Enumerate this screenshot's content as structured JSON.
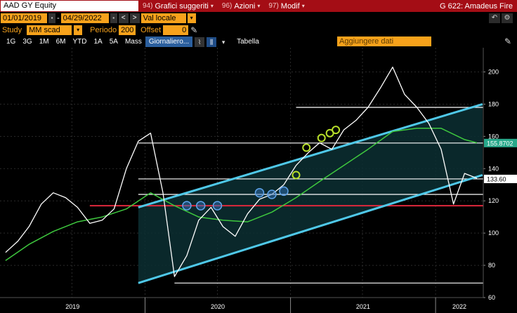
{
  "toolbar1": {
    "ticker": "AAD GY Equity",
    "menus": [
      {
        "num": "94)",
        "label": "Grafici suggeriti"
      },
      {
        "num": "96)",
        "label": "Azioni"
      },
      {
        "num": "97)",
        "label": "Modif"
      }
    ],
    "right_title": "G 622: Amadeus Fire"
  },
  "toolbar2": {
    "start_date": "01/01/2019",
    "end_date": "04/29/2022",
    "currency": "Val locale",
    "prev": "<",
    "next": ">",
    "undo_icon": "undo-icon",
    "settings_icon": "gear-icon"
  },
  "toolbar3": {
    "study_label": "Study",
    "study_value": "MM scad",
    "period_label": "Periodo",
    "period_value": "200",
    "offset_label": "Offset",
    "offset_value": "0"
  },
  "toolbar4": {
    "ranges": [
      "1G",
      "3G",
      "1M",
      "6M",
      "YTD",
      "1A",
      "5A",
      "Mass"
    ],
    "frequency": "Giornaliero...",
    "tabella": "Tabella",
    "add_data_placeholder": "Aggiungere dati"
  },
  "chart_data": {
    "type": "line",
    "title": "",
    "xlabel": "",
    "ylabel": "",
    "ylim": [
      60,
      215
    ],
    "yticks": [
      60,
      80,
      100,
      120,
      140,
      160,
      180,
      200
    ],
    "xlabels": [
      "2019",
      "2020",
      "2021",
      "2022"
    ],
    "series": [
      {
        "role": "price",
        "color": "#ffffff",
        "x": [
          "2019-01",
          "2019-02",
          "2019-03",
          "2019-04",
          "2019-05",
          "2019-06",
          "2019-07",
          "2019-08",
          "2019-09",
          "2019-10",
          "2019-11",
          "2019-12",
          "2020-01",
          "2020-02",
          "2020-03",
          "2020-04",
          "2020-05",
          "2020-06",
          "2020-07",
          "2020-08",
          "2020-09",
          "2020-10",
          "2020-11",
          "2020-12",
          "2021-01",
          "2021-02",
          "2021-03",
          "2021-04",
          "2021-05",
          "2021-06",
          "2021-07",
          "2021-08",
          "2021-09",
          "2021-10",
          "2021-11",
          "2021-12",
          "2022-01",
          "2022-02",
          "2022-03",
          "2022-04"
        ],
        "y": [
          88,
          95,
          104,
          118,
          125,
          122,
          116,
          106,
          108,
          115,
          140,
          157,
          162,
          125,
          73,
          86,
          108,
          116,
          104,
          98,
          112,
          121,
          124,
          130,
          142,
          150,
          156,
          152,
          164,
          170,
          178,
          190,
          203,
          186,
          178,
          168,
          152,
          118,
          137,
          134
        ]
      },
      {
        "role": "moving-average",
        "color": "#3ec83e",
        "x": [
          "2019-01",
          "2019-03",
          "2019-05",
          "2019-07",
          "2019-09",
          "2019-11",
          "2020-01",
          "2020-03",
          "2020-05",
          "2020-07",
          "2020-09",
          "2020-11",
          "2021-01",
          "2021-03",
          "2021-05",
          "2021-07",
          "2021-09",
          "2021-11",
          "2022-01",
          "2022-03",
          "2022-04"
        ],
        "y": [
          83,
          93,
          101,
          107,
          110,
          115,
          125,
          117,
          110,
          108,
          107,
          113,
          122,
          132,
          142,
          152,
          163,
          165,
          165,
          158,
          156
        ]
      }
    ],
    "horizontal_levels": [
      {
        "value": 155.8702,
        "label": "155.8702",
        "color": "#ffffff",
        "label_bg": "#27a88a"
      },
      {
        "value": 133.6,
        "label": "133.60",
        "color": "#ffffff",
        "label_bg": "#ffffff"
      },
      {
        "value": 117,
        "label": "",
        "color": "#e0283c"
      },
      {
        "value": 178,
        "label": "",
        "color": "#ffffff"
      },
      {
        "value": 124,
        "label": "",
        "color": "#ffffff"
      },
      {
        "value": 69,
        "label": "",
        "color": "#ffffff"
      }
    ],
    "channel": {
      "color": "#4fc8e8",
      "fill": "#0c2f33"
    },
    "markers_blue": 6,
    "markers_green": 5,
    "grid": true
  }
}
